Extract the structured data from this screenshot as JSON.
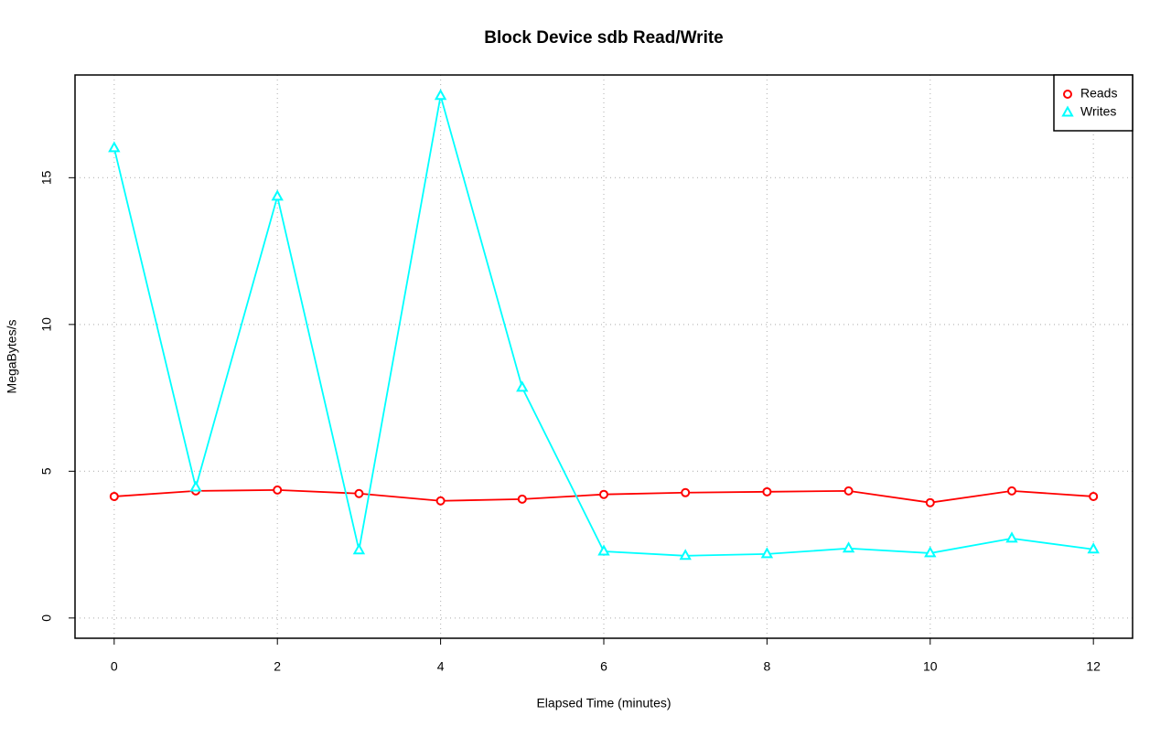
{
  "chart_data": {
    "type": "line",
    "title": "Block Device sdb Read/Write",
    "x_label": "Elapsed Time (minutes)",
    "y_label": "MegaBytes/s",
    "x": [
      0,
      1,
      2,
      3,
      4,
      5,
      6,
      7,
      8,
      9,
      10,
      11,
      12
    ],
    "series": [
      {
        "name": "Reads",
        "color": "#ff0000",
        "marker": "circle",
        "values": [
          4.14,
          4.33,
          4.36,
          4.24,
          3.99,
          4.05,
          4.21,
          4.27,
          4.3,
          4.33,
          3.93,
          4.33,
          4.14
        ]
      },
      {
        "name": "Writes",
        "color": "#00ffff",
        "marker": "triangle",
        "values": [
          16.01,
          4.45,
          14.36,
          2.31,
          17.79,
          7.85,
          2.27,
          2.12,
          2.18,
          2.37,
          2.21,
          2.71,
          2.34
        ]
      }
    ],
    "xlim": [
      -0.48,
      12.48
    ],
    "ylim": [
      -0.69,
      18.5
    ],
    "xticks": [
      0,
      2,
      4,
      6,
      8,
      10,
      12
    ],
    "yticks": [
      0,
      5,
      10,
      15
    ],
    "grid": true,
    "legend": "top-right"
  }
}
